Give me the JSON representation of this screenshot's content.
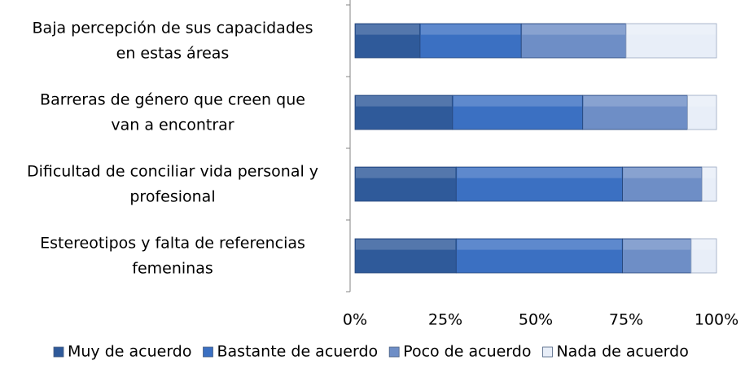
{
  "chart_data": {
    "type": "stacked-bar-horizontal",
    "categories": [
      "Baja percepción de sus capacidades\nen estas áreas",
      "Barreras de género que creen que\nvan a encontrar",
      "Dificultad de conciliar vida personal y\nprofesional",
      "Estereotipos y falta de referencias\nfemeninas"
    ],
    "series": [
      {
        "name": "Muy de acuerdo",
        "color": "#2f5a9a",
        "values": [
          18,
          27,
          28,
          28
        ]
      },
      {
        "name": "Bastante de acuerdo",
        "color": "#3b70c2",
        "values": [
          28,
          36,
          46,
          46
        ]
      },
      {
        "name": "Poco de acuerdo",
        "color": "#6e8ec6",
        "values": [
          29,
          29,
          22,
          19
        ]
      },
      {
        "name": "Nada de acuerdo",
        "color": "#e8eef8",
        "values": [
          25,
          8,
          4,
          7
        ]
      }
    ],
    "xlim": [
      0,
      100
    ],
    "xticks": [
      {
        "value": 0,
        "label": "0%"
      },
      {
        "value": 25,
        "label": "25%"
      },
      {
        "value": 50,
        "label": "50%"
      },
      {
        "value": 75,
        "label": "75%"
      },
      {
        "value": 100,
        "label": "100%"
      }
    ],
    "legend": "bottom"
  }
}
